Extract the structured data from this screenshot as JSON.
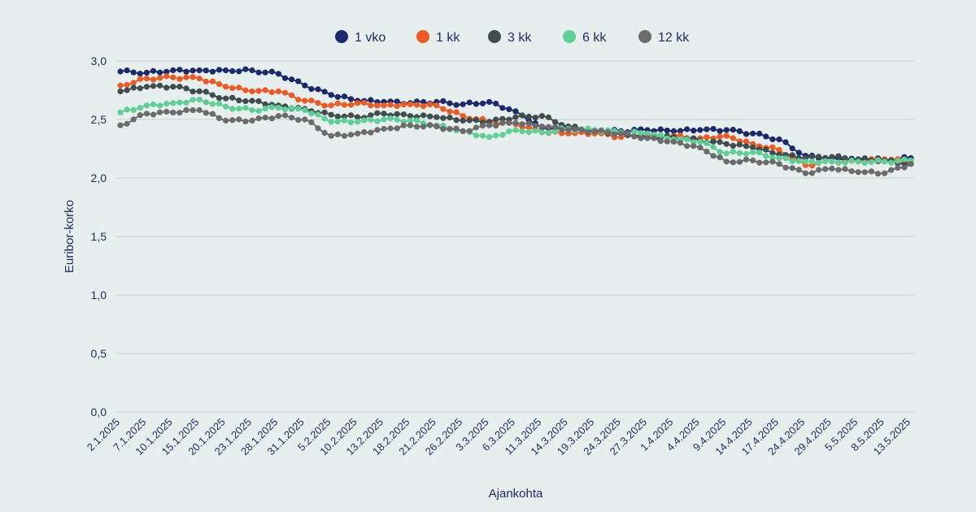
{
  "chart_data": {
    "type": "line",
    "xlabel": "Ajankohta",
    "ylabel": "Euribor-korko",
    "ylim": [
      0,
      3
    ],
    "yticks": [
      "0,0",
      "0,5",
      "1,0",
      "1,5",
      "2,0",
      "2,5",
      "3,0"
    ],
    "grid": true,
    "legend_position": "top-center",
    "categories": [
      "2.1.2025",
      "7.1.2025",
      "10.1.2025",
      "15.1.2025",
      "20.1.2025",
      "23.1.2025",
      "28.1.2025",
      "31.1.2025",
      "5.2.2025",
      "10.2.2025",
      "13.2.2025",
      "18.2.2025",
      "21.2.2025",
      "26.2.2025",
      "3.3.2025",
      "6.3.2025",
      "11.3.2025",
      "14.3.2025",
      "19.3.2025",
      "24.3.2025",
      "27.3.2025",
      "1.4.2025",
      "4.4.2025",
      "9.4.2025",
      "14.4.2025",
      "17.4.2025",
      "24.4.2025",
      "29.4.2025",
      "5.5.2025",
      "8.5.2025",
      "13.5.2025"
    ],
    "series": [
      {
        "name": "1 vko",
        "color": "#1b2a6b",
        "values": [
          2.91,
          2.9,
          2.92,
          2.92,
          2.92,
          2.92,
          2.89,
          2.79,
          2.71,
          2.66,
          2.65,
          2.64,
          2.65,
          2.63,
          2.65,
          2.57,
          2.43,
          2.43,
          2.4,
          2.4,
          2.41,
          2.4,
          2.41,
          2.41,
          2.38,
          2.33,
          2.19,
          2.17,
          2.16,
          2.16,
          2.17
        ]
      },
      {
        "name": "1 kk",
        "color": "#f05a22",
        "values": [
          2.79,
          2.85,
          2.86,
          2.85,
          2.78,
          2.74,
          2.74,
          2.66,
          2.62,
          2.64,
          2.62,
          2.63,
          2.62,
          2.53,
          2.48,
          2.46,
          2.39,
          2.38,
          2.38,
          2.35,
          2.36,
          2.36,
          2.34,
          2.36,
          2.29,
          2.24,
          2.11,
          2.14,
          2.14,
          2.16,
          2.14
        ]
      },
      {
        "name": "3 kk",
        "color": "#3e4d4e",
        "values": [
          2.74,
          2.78,
          2.78,
          2.74,
          2.68,
          2.66,
          2.62,
          2.59,
          2.54,
          2.52,
          2.55,
          2.53,
          2.52,
          2.49,
          2.48,
          2.52,
          2.53,
          2.44,
          2.41,
          2.38,
          2.35,
          2.35,
          2.32,
          2.29,
          2.26,
          2.2,
          2.17,
          2.18,
          2.16,
          2.15,
          2.12
        ]
      },
      {
        "name": "6 kk",
        "color": "#5fcf95",
        "values": [
          2.56,
          2.62,
          2.64,
          2.67,
          2.61,
          2.58,
          2.6,
          2.58,
          2.48,
          2.48,
          2.5,
          2.49,
          2.45,
          2.4,
          2.35,
          2.41,
          2.39,
          2.42,
          2.41,
          2.39,
          2.38,
          2.33,
          2.31,
          2.21,
          2.22,
          2.17,
          2.14,
          2.14,
          2.14,
          2.14,
          2.15
        ]
      },
      {
        "name": "12 kk",
        "color": "#6b6b6b",
        "values": [
          2.45,
          2.55,
          2.56,
          2.58,
          2.49,
          2.49,
          2.53,
          2.5,
          2.36,
          2.38,
          2.42,
          2.45,
          2.44,
          2.4,
          2.45,
          2.47,
          2.44,
          2.41,
          2.4,
          2.38,
          2.34,
          2.31,
          2.26,
          2.14,
          2.15,
          2.12,
          2.04,
          2.08,
          2.05,
          2.04,
          2.12
        ]
      }
    ]
  }
}
